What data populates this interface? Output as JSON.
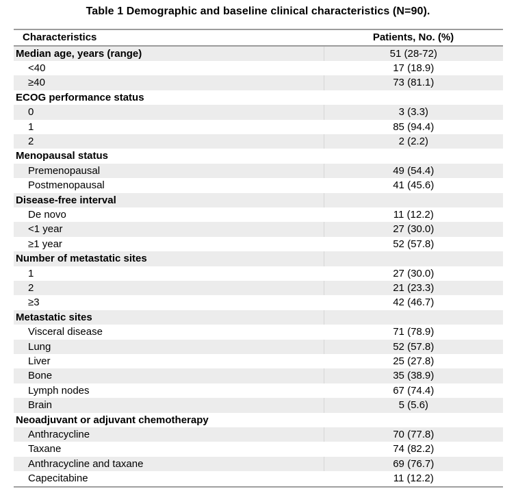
{
  "title": "Table 1 Demographic and baseline clinical characteristics (N=90).",
  "table": {
    "columns": {
      "characteristics": "Characteristics",
      "patients": "Patients, No. (%)"
    },
    "rows": [
      {
        "label": "Median age, years (range)",
        "value": "51 (28-72)",
        "bold": true,
        "shaded": true
      },
      {
        "label": "<40",
        "value": "17 (18.9)",
        "bold": false,
        "shaded": false
      },
      {
        "label": "≥40",
        "value": "73 (81.1)",
        "bold": false,
        "shaded": true
      },
      {
        "label": "ECOG performance status",
        "value": "",
        "bold": true,
        "shaded": false
      },
      {
        "label": "0",
        "value": "3 (3.3)",
        "bold": false,
        "shaded": true
      },
      {
        "label": "1",
        "value": "85 (94.4)",
        "bold": false,
        "shaded": false
      },
      {
        "label": "2",
        "value": "2 (2.2)",
        "bold": false,
        "shaded": true
      },
      {
        "label": "Menopausal status",
        "value": "",
        "bold": true,
        "shaded": false
      },
      {
        "label": "Premenopausal",
        "value": "49 (54.4)",
        "bold": false,
        "shaded": true
      },
      {
        "label": "Postmenopausal",
        "value": "41 (45.6)",
        "bold": false,
        "shaded": false
      },
      {
        "label": "Disease-free interval",
        "value": "",
        "bold": true,
        "shaded": true
      },
      {
        "label": "De novo",
        "value": "11 (12.2)",
        "bold": false,
        "shaded": false
      },
      {
        "label": "<1 year",
        "value": "27 (30.0)",
        "bold": false,
        "shaded": true
      },
      {
        "label": "≥1 year",
        "value": "52 (57.8)",
        "bold": false,
        "shaded": false
      },
      {
        "label": "Number of metastatic sites",
        "value": "",
        "bold": true,
        "shaded": true
      },
      {
        "label": "1",
        "value": "27 (30.0)",
        "bold": false,
        "shaded": false
      },
      {
        "label": "2",
        "value": "21 (23.3)",
        "bold": false,
        "shaded": true
      },
      {
        "label": "≥3",
        "value": "42 (46.7)",
        "bold": false,
        "shaded": false
      },
      {
        "label": "Metastatic sites",
        "value": "",
        "bold": true,
        "shaded": true
      },
      {
        "label": "Visceral disease",
        "value": "71 (78.9)",
        "bold": false,
        "shaded": false
      },
      {
        "label": "Lung",
        "value": "52 (57.8)",
        "bold": false,
        "shaded": true
      },
      {
        "label": "Liver",
        "value": "25 (27.8)",
        "bold": false,
        "shaded": false
      },
      {
        "label": "Bone",
        "value": "35 (38.9)",
        "bold": false,
        "shaded": true
      },
      {
        "label": "Lymph nodes",
        "value": "67 (74.4)",
        "bold": false,
        "shaded": false
      },
      {
        "label": "Brain",
        "value": "5 (5.6)",
        "bold": false,
        "shaded": true
      },
      {
        "label": "Neoadjuvant or adjuvant chemotherapy",
        "value": "",
        "bold": true,
        "shaded": false
      },
      {
        "label": "Anthracycline",
        "value": "70 (77.8)",
        "bold": false,
        "shaded": true
      },
      {
        "label": "Taxane",
        "value": "74 (82.2)",
        "bold": false,
        "shaded": false
      },
      {
        "label": "Anthracycline and taxane",
        "value": "69 (76.7)",
        "bold": false,
        "shaded": true
      },
      {
        "label": "Capecitabine",
        "value": "11 (12.2)",
        "bold": false,
        "shaded": false
      }
    ]
  },
  "colors": {
    "shaded_row": "#ECECEC",
    "rule": "#9B9B9B",
    "column_divider": "#D6D6D6",
    "text": "#000000",
    "background": "#FFFFFF"
  }
}
